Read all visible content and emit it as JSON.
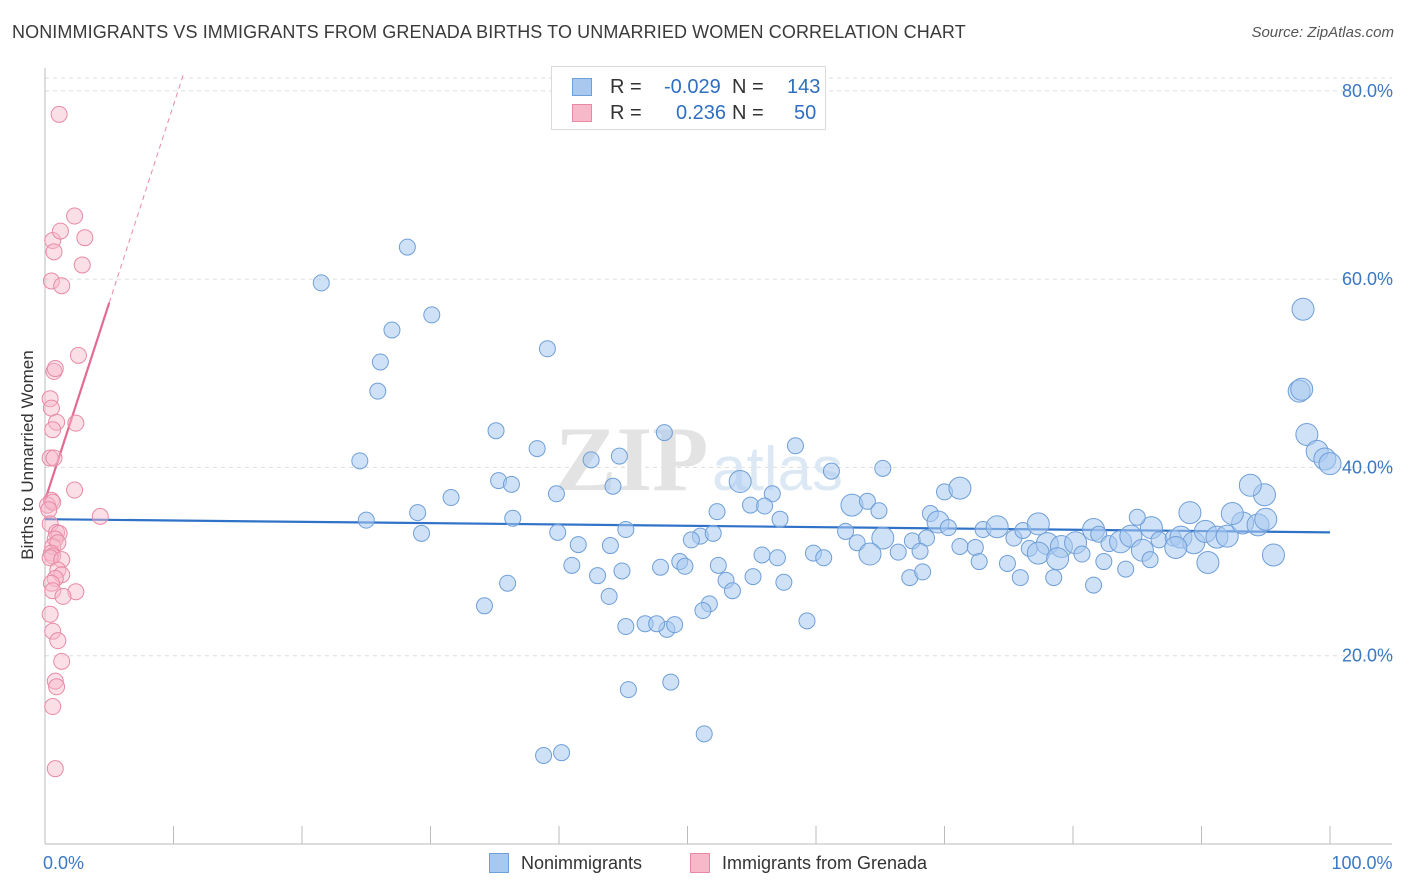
{
  "title": "NONIMMIGRANTS VS IMMIGRANTS FROM GRENADA BIRTHS TO UNMARRIED WOMEN CORRELATION CHART",
  "source": "Source: ZipAtlas.com",
  "watermark": {
    "zip": "ZIP",
    "atlas": "atlas"
  },
  "legend": {
    "rows": [
      {
        "r_label": "R =",
        "r_value": "-0.029",
        "n_label": "N =",
        "n_value": "143",
        "color": "#a8c8f0",
        "border": "#6f9fd8"
      },
      {
        "r_label": "R =",
        "r_value": "0.236",
        "n_label": "N =",
        "n_value": "50",
        "color": "#f7b8c9",
        "border": "#e88aa6"
      }
    ]
  },
  "bottom_legend": [
    {
      "label": "Nonimmigrants",
      "color": "#a8c8f0",
      "border": "#6f9fd8"
    },
    {
      "label": "Immigrants from Grenada",
      "color": "#f7b8c9",
      "border": "#e88aa6"
    }
  ],
  "chart_data": {
    "type": "scatter",
    "title": "NONIMMIGRANTS VS IMMIGRANTS FROM GRENADA BIRTHS TO UNMARRIED WOMEN CORRELATION CHART",
    "xlabel": "",
    "ylabel": "Births to Unmarried Women",
    "xlim": [
      0,
      100
    ],
    "ylim": [
      0,
      82
    ],
    "x_ticks": [
      0,
      10,
      20,
      30,
      40,
      50,
      60,
      70,
      80,
      90,
      100
    ],
    "x_tick_labels": [
      {
        "value": 0,
        "label": "0.0%"
      },
      {
        "value": 100,
        "label": "100.0%"
      }
    ],
    "y_tick_labels": [
      {
        "value": 20,
        "label": "20.0%"
      },
      {
        "value": 40,
        "label": "40.0%"
      },
      {
        "value": 60,
        "label": "60.0%"
      },
      {
        "value": 80,
        "label": "80.0%"
      }
    ],
    "grid": true,
    "legend_position": "top-center",
    "series": [
      {
        "name": "Nonimmigrants",
        "color": "#a8c8f0",
        "stroke": "#6f9fd8",
        "trend": {
          "x": [
            0,
            100
          ],
          "y": [
            34.5,
            33.1
          ]
        },
        "points": [
          {
            "x": 21.5,
            "y": 59.6,
            "s": 1
          },
          {
            "x": 28.2,
            "y": 63.4,
            "s": 1
          },
          {
            "x": 27.0,
            "y": 54.6,
            "s": 1
          },
          {
            "x": 30.1,
            "y": 56.2,
            "s": 1
          },
          {
            "x": 26.1,
            "y": 51.2,
            "s": 1
          },
          {
            "x": 25.9,
            "y": 48.1,
            "s": 1
          },
          {
            "x": 39.1,
            "y": 52.6,
            "s": 1
          },
          {
            "x": 24.5,
            "y": 40.7,
            "s": 1
          },
          {
            "x": 35.1,
            "y": 43.9,
            "s": 1
          },
          {
            "x": 38.3,
            "y": 42.0,
            "s": 1
          },
          {
            "x": 42.5,
            "y": 40.8,
            "s": 1
          },
          {
            "x": 44.7,
            "y": 41.2,
            "s": 1
          },
          {
            "x": 48.2,
            "y": 43.7,
            "s": 1
          },
          {
            "x": 58.4,
            "y": 42.3,
            "s": 1
          },
          {
            "x": 35.3,
            "y": 38.6,
            "s": 1
          },
          {
            "x": 36.3,
            "y": 38.2,
            "s": 1
          },
          {
            "x": 31.6,
            "y": 36.8,
            "s": 1
          },
          {
            "x": 39.8,
            "y": 37.2,
            "s": 1
          },
          {
            "x": 44.2,
            "y": 38.0,
            "s": 1
          },
          {
            "x": 54.1,
            "y": 38.5,
            "s": 2
          },
          {
            "x": 56.6,
            "y": 37.2,
            "s": 1
          },
          {
            "x": 61.2,
            "y": 39.6,
            "s": 1
          },
          {
            "x": 65.2,
            "y": 39.9,
            "s": 1
          },
          {
            "x": 29.0,
            "y": 35.2,
            "s": 1
          },
          {
            "x": 36.4,
            "y": 34.6,
            "s": 1
          },
          {
            "x": 25.0,
            "y": 34.4,
            "s": 1
          },
          {
            "x": 52.3,
            "y": 35.3,
            "s": 1
          },
          {
            "x": 54.9,
            "y": 36.0,
            "s": 1
          },
          {
            "x": 56.0,
            "y": 35.9,
            "s": 1
          },
          {
            "x": 62.8,
            "y": 36.0,
            "s": 2
          },
          {
            "x": 64.0,
            "y": 36.4,
            "s": 1
          },
          {
            "x": 64.9,
            "y": 35.4,
            "s": 1
          },
          {
            "x": 68.9,
            "y": 35.1,
            "s": 1
          },
          {
            "x": 70.0,
            "y": 37.4,
            "s": 1
          },
          {
            "x": 71.2,
            "y": 37.8,
            "s": 2
          },
          {
            "x": 57.2,
            "y": 34.5,
            "s": 1
          },
          {
            "x": 29.3,
            "y": 33.0,
            "s": 1
          },
          {
            "x": 39.9,
            "y": 33.1,
            "s": 1
          },
          {
            "x": 45.2,
            "y": 33.4,
            "s": 1
          },
          {
            "x": 51.0,
            "y": 32.7,
            "s": 1
          },
          {
            "x": 41.5,
            "y": 31.8,
            "s": 1
          },
          {
            "x": 50.3,
            "y": 32.3,
            "s": 1
          },
          {
            "x": 52.0,
            "y": 33.0,
            "s": 1
          },
          {
            "x": 62.3,
            "y": 33.2,
            "s": 1
          },
          {
            "x": 63.2,
            "y": 32.0,
            "s": 1
          },
          {
            "x": 65.2,
            "y": 32.5,
            "s": 2
          },
          {
            "x": 67.5,
            "y": 32.2,
            "s": 1
          },
          {
            "x": 68.6,
            "y": 32.5,
            "s": 1
          },
          {
            "x": 69.5,
            "y": 34.2,
            "s": 2
          },
          {
            "x": 70.3,
            "y": 33.6,
            "s": 1
          },
          {
            "x": 71.2,
            "y": 31.6,
            "s": 1
          },
          {
            "x": 72.4,
            "y": 31.5,
            "s": 1
          },
          {
            "x": 73.0,
            "y": 33.4,
            "s": 1
          },
          {
            "x": 74.1,
            "y": 33.7,
            "s": 2
          },
          {
            "x": 75.4,
            "y": 32.5,
            "s": 1
          },
          {
            "x": 76.1,
            "y": 33.3,
            "s": 1
          },
          {
            "x": 76.6,
            "y": 31.4,
            "s": 1
          },
          {
            "x": 77.3,
            "y": 34.0,
            "s": 2
          },
          {
            "x": 78.0,
            "y": 31.9,
            "s": 2
          },
          {
            "x": 79.1,
            "y": 31.6,
            "s": 2
          },
          {
            "x": 80.2,
            "y": 32.0,
            "s": 2
          },
          {
            "x": 81.6,
            "y": 33.4,
            "s": 2
          },
          {
            "x": 82.0,
            "y": 32.9,
            "s": 1
          },
          {
            "x": 82.8,
            "y": 31.9,
            "s": 1
          },
          {
            "x": 83.7,
            "y": 32.1,
            "s": 2
          },
          {
            "x": 84.5,
            "y": 32.7,
            "s": 2
          },
          {
            "x": 85.4,
            "y": 31.2,
            "s": 2
          },
          {
            "x": 86.1,
            "y": 33.6,
            "s": 2
          },
          {
            "x": 86.7,
            "y": 32.3,
            "s": 1
          },
          {
            "x": 87.8,
            "y": 32.5,
            "s": 1
          },
          {
            "x": 88.4,
            "y": 32.6,
            "s": 2
          },
          {
            "x": 89.4,
            "y": 32.0,
            "s": 2
          },
          {
            "x": 90.3,
            "y": 33.2,
            "s": 2
          },
          {
            "x": 91.2,
            "y": 32.6,
            "s": 2
          },
          {
            "x": 92.0,
            "y": 32.7,
            "s": 2
          },
          {
            "x": 93.2,
            "y": 34.1,
            "s": 2
          },
          {
            "x": 94.4,
            "y": 33.9,
            "s": 2
          },
          {
            "x": 95.6,
            "y": 30.7,
            "s": 2
          },
          {
            "x": 85.0,
            "y": 34.7,
            "s": 1
          },
          {
            "x": 89.1,
            "y": 35.2,
            "s": 2
          },
          {
            "x": 92.4,
            "y": 35.1,
            "s": 2
          },
          {
            "x": 95.0,
            "y": 34.5,
            "s": 2
          },
          {
            "x": 64.2,
            "y": 30.8,
            "s": 2
          },
          {
            "x": 66.4,
            "y": 31.0,
            "s": 1
          },
          {
            "x": 68.1,
            "y": 31.1,
            "s": 1
          },
          {
            "x": 72.7,
            "y": 30.0,
            "s": 1
          },
          {
            "x": 74.9,
            "y": 29.8,
            "s": 1
          },
          {
            "x": 77.3,
            "y": 30.9,
            "s": 2
          },
          {
            "x": 78.8,
            "y": 30.3,
            "s": 2
          },
          {
            "x": 80.7,
            "y": 30.8,
            "s": 1
          },
          {
            "x": 82.4,
            "y": 30.0,
            "s": 1
          },
          {
            "x": 84.1,
            "y": 29.2,
            "s": 1
          },
          {
            "x": 86.0,
            "y": 30.2,
            "s": 1
          },
          {
            "x": 88.0,
            "y": 31.5,
            "s": 2
          },
          {
            "x": 90.5,
            "y": 29.9,
            "s": 2
          },
          {
            "x": 47.9,
            "y": 29.4,
            "s": 1
          },
          {
            "x": 49.4,
            "y": 30.0,
            "s": 1
          },
          {
            "x": 52.4,
            "y": 29.6,
            "s": 1
          },
          {
            "x": 55.8,
            "y": 30.7,
            "s": 1
          },
          {
            "x": 57.0,
            "y": 30.4,
            "s": 1
          },
          {
            "x": 59.8,
            "y": 30.9,
            "s": 1
          },
          {
            "x": 60.6,
            "y": 30.4,
            "s": 1
          },
          {
            "x": 44.0,
            "y": 31.7,
            "s": 1
          },
          {
            "x": 41.0,
            "y": 29.6,
            "s": 1
          },
          {
            "x": 44.9,
            "y": 29.0,
            "s": 1
          },
          {
            "x": 49.8,
            "y": 29.5,
            "s": 1
          },
          {
            "x": 53.0,
            "y": 28.0,
            "s": 1
          },
          {
            "x": 55.1,
            "y": 28.4,
            "s": 1
          },
          {
            "x": 57.5,
            "y": 27.8,
            "s": 1
          },
          {
            "x": 67.3,
            "y": 28.3,
            "s": 1
          },
          {
            "x": 68.3,
            "y": 28.9,
            "s": 1
          },
          {
            "x": 75.9,
            "y": 28.3,
            "s": 1
          },
          {
            "x": 78.5,
            "y": 28.3,
            "s": 1
          },
          {
            "x": 81.6,
            "y": 27.5,
            "s": 1
          },
          {
            "x": 36.0,
            "y": 27.7,
            "s": 1
          },
          {
            "x": 43.0,
            "y": 28.5,
            "s": 1
          },
          {
            "x": 34.2,
            "y": 25.3,
            "s": 1
          },
          {
            "x": 51.7,
            "y": 25.5,
            "s": 1
          },
          {
            "x": 51.2,
            "y": 24.8,
            "s": 1
          },
          {
            "x": 45.2,
            "y": 23.1,
            "s": 1
          },
          {
            "x": 48.4,
            "y": 22.8,
            "s": 1
          },
          {
            "x": 46.7,
            "y": 23.4,
            "s": 1
          },
          {
            "x": 47.6,
            "y": 23.4,
            "s": 1
          },
          {
            "x": 49.0,
            "y": 23.3,
            "s": 1
          },
          {
            "x": 59.3,
            "y": 23.7,
            "s": 1
          },
          {
            "x": 43.9,
            "y": 26.3,
            "s": 1
          },
          {
            "x": 53.5,
            "y": 26.9,
            "s": 1
          },
          {
            "x": 45.4,
            "y": 16.4,
            "s": 1
          },
          {
            "x": 48.7,
            "y": 17.2,
            "s": 1
          },
          {
            "x": 38.8,
            "y": 9.4,
            "s": 1
          },
          {
            "x": 40.2,
            "y": 9.7,
            "s": 1
          },
          {
            "x": 51.3,
            "y": 11.7,
            "s": 1
          },
          {
            "x": 97.6,
            "y": 48.1,
            "s": 2
          },
          {
            "x": 97.8,
            "y": 48.3,
            "s": 2
          },
          {
            "x": 97.9,
            "y": 56.8,
            "s": 2
          },
          {
            "x": 98.2,
            "y": 43.5,
            "s": 2
          },
          {
            "x": 99.0,
            "y": 41.7,
            "s": 2
          },
          {
            "x": 99.6,
            "y": 40.9,
            "s": 2
          },
          {
            "x": 100.0,
            "y": 40.4,
            "s": 2
          },
          {
            "x": 94.9,
            "y": 37.1,
            "s": 2
          },
          {
            "x": 93.8,
            "y": 38.1,
            "s": 2
          }
        ]
      },
      {
        "name": "Immigrants from Grenada",
        "color": "#f7b8c9",
        "stroke": "#e88aa6",
        "trend": {
          "x": [
            0,
            5
          ],
          "y": [
            36.5,
            57.5
          ]
        },
        "points": [
          {
            "x": 1.1,
            "y": 77.5
          },
          {
            "x": 0.6,
            "y": 64.1
          },
          {
            "x": 2.3,
            "y": 66.7
          },
          {
            "x": 1.2,
            "y": 65.1
          },
          {
            "x": 3.1,
            "y": 64.4
          },
          {
            "x": 0.7,
            "y": 62.9
          },
          {
            "x": 2.9,
            "y": 61.5
          },
          {
            "x": 0.5,
            "y": 59.8
          },
          {
            "x": 1.3,
            "y": 59.3
          },
          {
            "x": 2.6,
            "y": 51.9
          },
          {
            "x": 0.7,
            "y": 50.2
          },
          {
            "x": 0.8,
            "y": 50.5
          },
          {
            "x": 0.4,
            "y": 47.3
          },
          {
            "x": 0.5,
            "y": 46.3
          },
          {
            "x": 0.9,
            "y": 44.8
          },
          {
            "x": 2.4,
            "y": 44.7
          },
          {
            "x": 0.6,
            "y": 44.0
          },
          {
            "x": 0.4,
            "y": 41.0
          },
          {
            "x": 0.7,
            "y": 41.0
          },
          {
            "x": 2.3,
            "y": 37.6
          },
          {
            "x": 0.5,
            "y": 36.5
          },
          {
            "x": 0.2,
            "y": 36.0
          },
          {
            "x": 0.6,
            "y": 36.3
          },
          {
            "x": 0.3,
            "y": 35.5
          },
          {
            "x": 4.3,
            "y": 34.8
          },
          {
            "x": 0.4,
            "y": 34.0
          },
          {
            "x": 0.9,
            "y": 33.1
          },
          {
            "x": 1.1,
            "y": 33.0
          },
          {
            "x": 0.8,
            "y": 32.4
          },
          {
            "x": 0.6,
            "y": 31.6
          },
          {
            "x": 1.0,
            "y": 32.0
          },
          {
            "x": 0.5,
            "y": 30.9
          },
          {
            "x": 0.6,
            "y": 30.6
          },
          {
            "x": 0.4,
            "y": 30.4
          },
          {
            "x": 1.3,
            "y": 30.2
          },
          {
            "x": 1.0,
            "y": 29.1
          },
          {
            "x": 1.3,
            "y": 28.6
          },
          {
            "x": 0.8,
            "y": 28.2
          },
          {
            "x": 0.5,
            "y": 27.7
          },
          {
            "x": 2.4,
            "y": 26.8
          },
          {
            "x": 0.6,
            "y": 26.9
          },
          {
            "x": 1.4,
            "y": 26.3
          },
          {
            "x": 0.4,
            "y": 24.4
          },
          {
            "x": 0.6,
            "y": 22.6
          },
          {
            "x": 1.0,
            "y": 21.6
          },
          {
            "x": 1.3,
            "y": 19.4
          },
          {
            "x": 0.8,
            "y": 17.3
          },
          {
            "x": 0.9,
            "y": 16.7
          },
          {
            "x": 0.6,
            "y": 14.6
          },
          {
            "x": 0.8,
            "y": 8.0
          }
        ]
      }
    ]
  }
}
